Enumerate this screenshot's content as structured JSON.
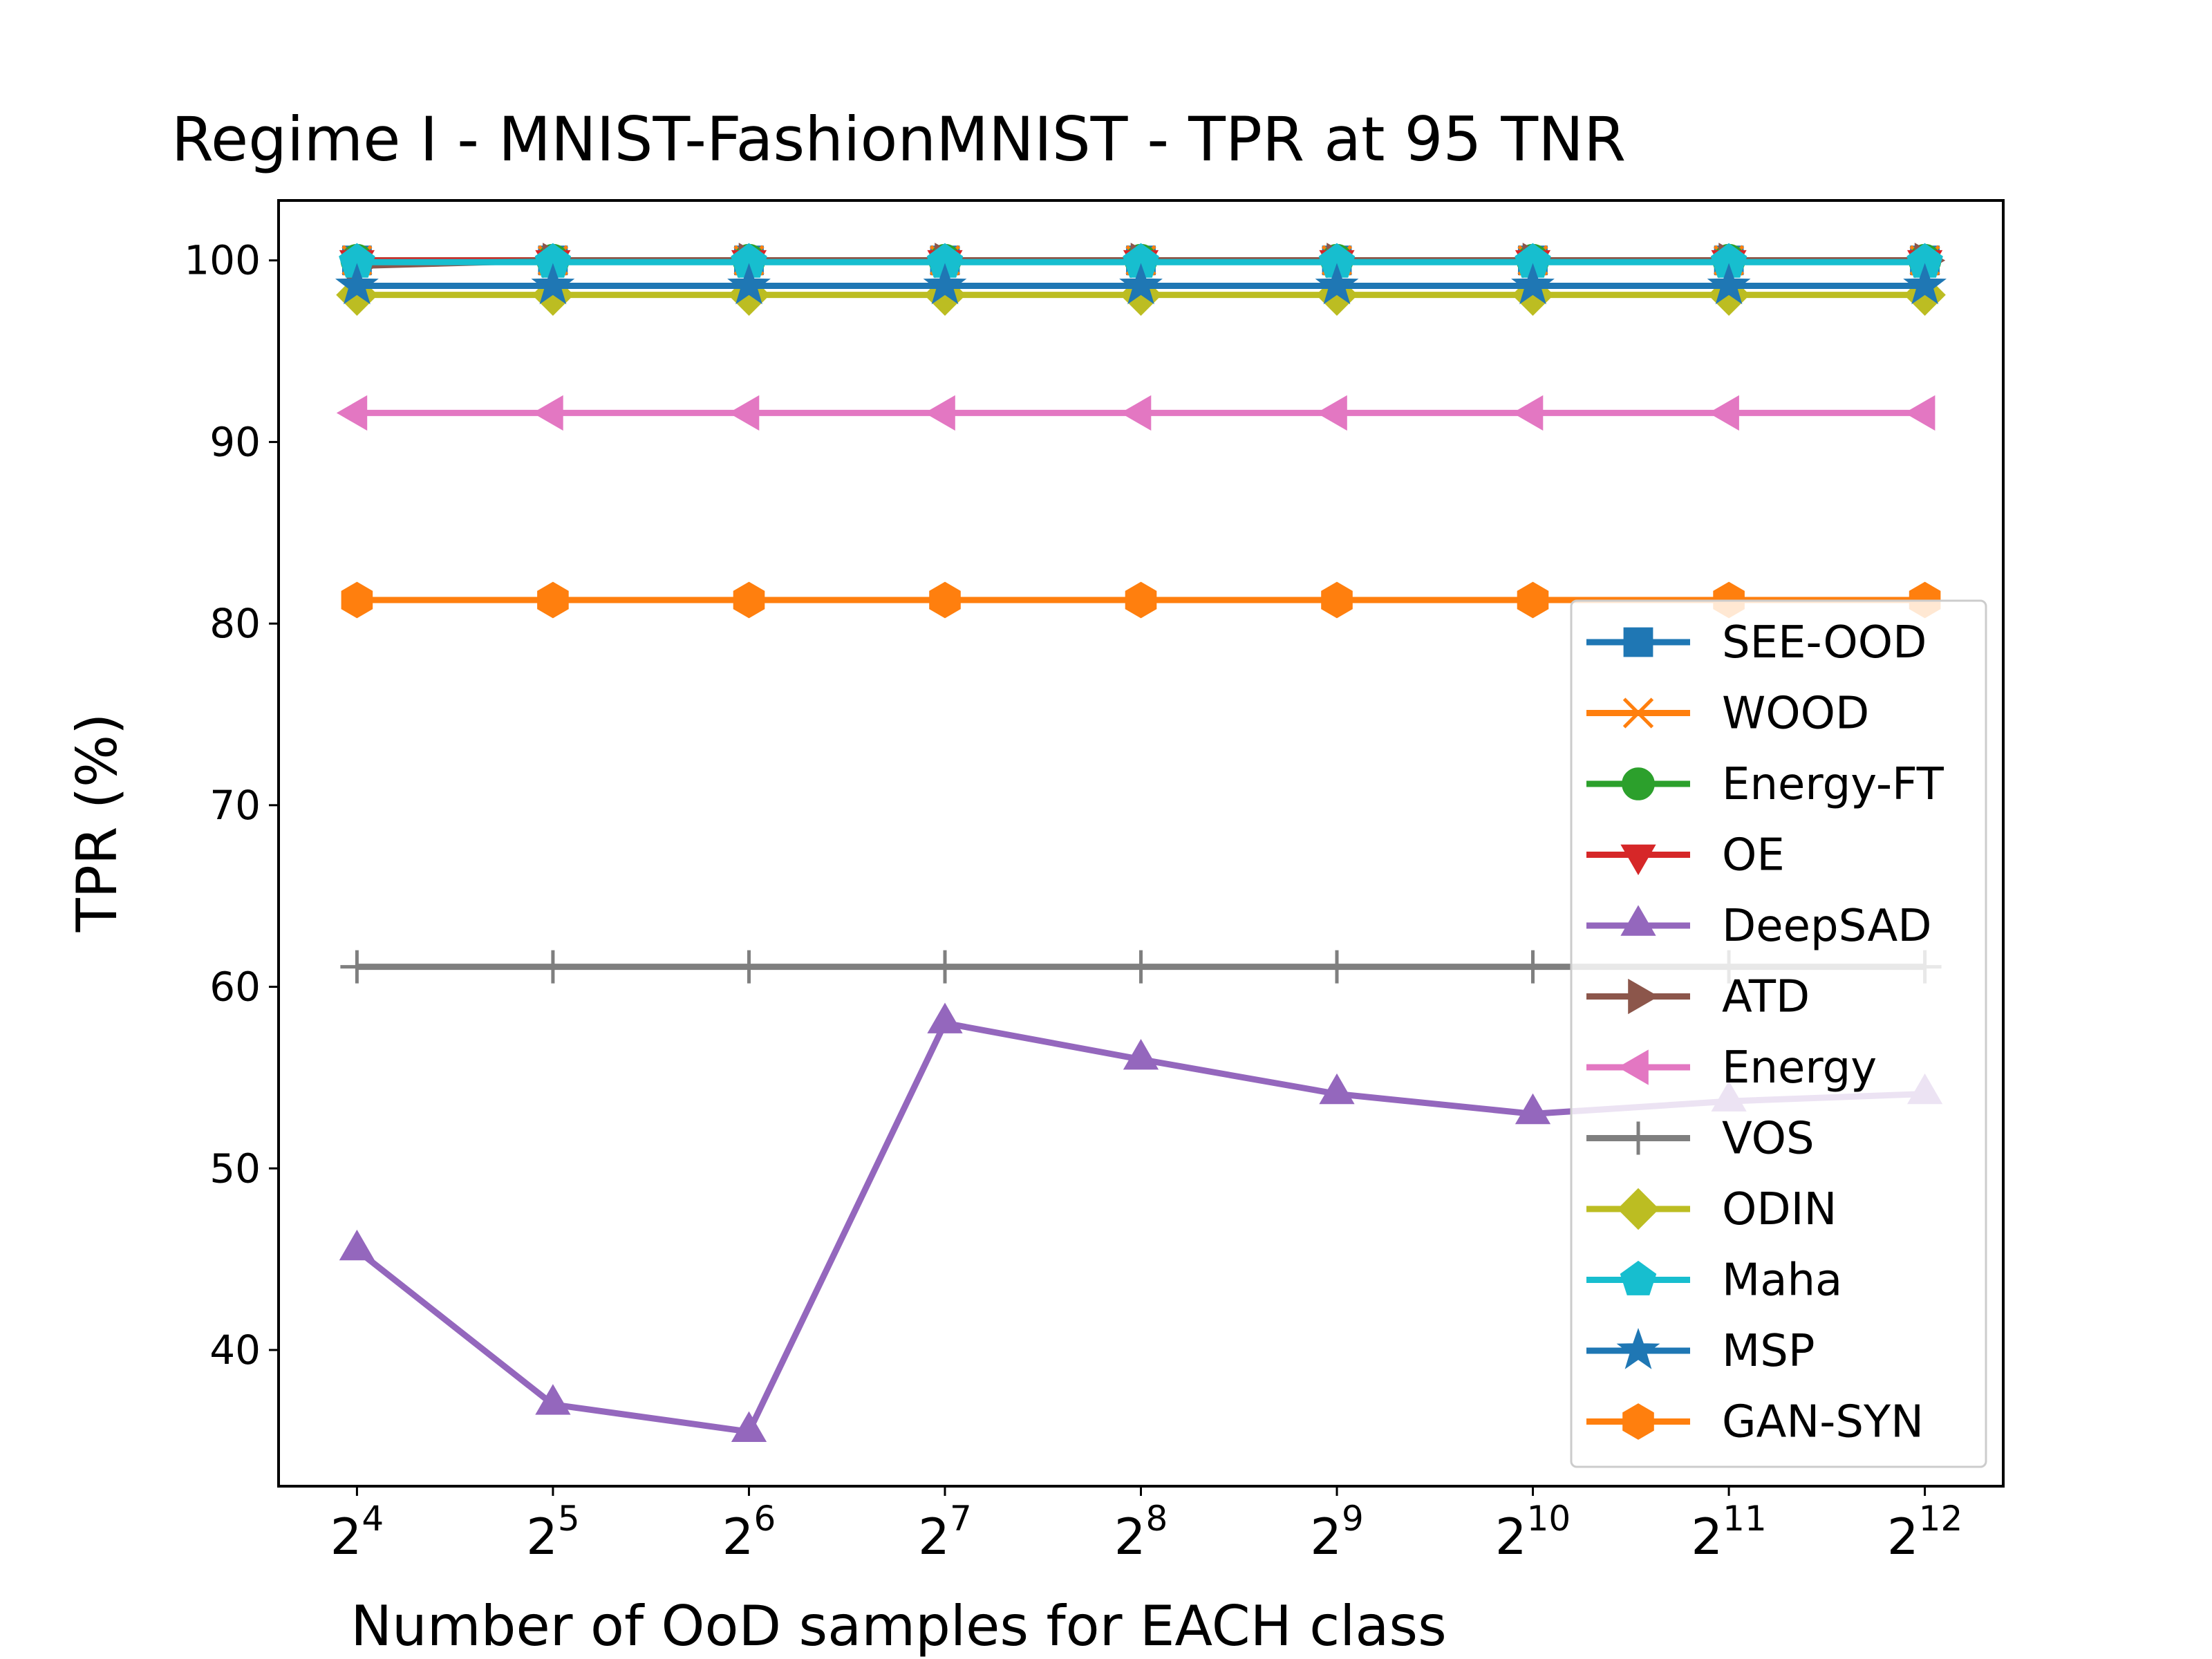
{
  "chart_data": {
    "type": "line",
    "title": "Regime I - MNIST-FashionMNIST - TPR at 95 TNR",
    "xlabel": "Number of OoD samples for EACH class",
    "ylabel": "TPR (%)",
    "x": [
      4,
      5,
      6,
      7,
      8,
      9,
      10,
      11,
      12
    ],
    "x_ticks": [
      {
        "base": "2",
        "exp": "4"
      },
      {
        "base": "2",
        "exp": "5"
      },
      {
        "base": "2",
        "exp": "6"
      },
      {
        "base": "2",
        "exp": "7"
      },
      {
        "base": "2",
        "exp": "8"
      },
      {
        "base": "2",
        "exp": "9"
      },
      {
        "base": "2",
        "exp": "10"
      },
      {
        "base": "2",
        "exp": "11"
      },
      {
        "base": "2",
        "exp": "12"
      }
    ],
    "x_scale": "log2",
    "xlim": [
      3.6,
      12.4
    ],
    "ylim": [
      32.5,
      103.3
    ],
    "y_ticks": [
      "40",
      "50",
      "60",
      "70",
      "80",
      "90",
      "100"
    ],
    "grid": false,
    "legend_position": "lower-right",
    "series": [
      {
        "name": "SEE-OOD",
        "color": "#1f77b4",
        "marker": "square",
        "values": [
          100,
          100,
          100,
          100,
          100,
          100,
          100,
          100,
          100
        ]
      },
      {
        "name": "WOOD",
        "color": "#ff7f0e",
        "marker": "x",
        "values": [
          100,
          100,
          100,
          100,
          100,
          100,
          100,
          100,
          100
        ]
      },
      {
        "name": "Energy-FT",
        "color": "#2ca02c",
        "marker": "circle",
        "values": [
          100,
          100,
          100,
          100,
          100,
          100,
          100,
          100,
          100
        ]
      },
      {
        "name": "OE",
        "color": "#d62728",
        "marker": "triangle-down",
        "values": [
          100,
          100,
          100,
          100,
          100,
          100,
          100,
          100,
          100
        ]
      },
      {
        "name": "DeepSAD",
        "color": "#9467bd",
        "marker": "triangle-up",
        "values": [
          45.5,
          37.0,
          35.5,
          58.0,
          56.0,
          54.1,
          53.0,
          53.7,
          54.1
        ]
      },
      {
        "name": "ATD",
        "color": "#8c564b",
        "marker": "triangle-right",
        "values": [
          99.7,
          100,
          100,
          100,
          100,
          100,
          100,
          100,
          100
        ]
      },
      {
        "name": "Energy",
        "color": "#e377c2",
        "marker": "triangle-left",
        "values": [
          91.6,
          91.6,
          91.6,
          91.6,
          91.6,
          91.6,
          91.6,
          91.6,
          91.6
        ]
      },
      {
        "name": "VOS",
        "color": "#7f7f7f",
        "marker": "plus",
        "values": [
          61.1,
          61.1,
          61.1,
          61.1,
          61.1,
          61.1,
          61.1,
          61.1,
          61.1
        ]
      },
      {
        "name": "ODIN",
        "color": "#bcbd22",
        "marker": "diamond",
        "values": [
          98.1,
          98.1,
          98.1,
          98.1,
          98.1,
          98.1,
          98.1,
          98.1,
          98.1
        ]
      },
      {
        "name": "Maha",
        "color": "#17becf",
        "marker": "pentagon",
        "values": [
          99.9,
          99.9,
          99.9,
          99.9,
          99.9,
          99.9,
          99.9,
          99.9,
          99.9
        ]
      },
      {
        "name": "MSP",
        "color": "#1f77b4",
        "marker": "star",
        "values": [
          98.6,
          98.6,
          98.6,
          98.6,
          98.6,
          98.6,
          98.6,
          98.6,
          98.6
        ]
      },
      {
        "name": "GAN-SYN",
        "color": "#ff7f0e",
        "marker": "hexagon",
        "values": [
          81.3,
          81.3,
          81.3,
          81.3,
          81.3,
          81.3,
          81.3,
          81.3,
          81.3
        ]
      }
    ]
  }
}
